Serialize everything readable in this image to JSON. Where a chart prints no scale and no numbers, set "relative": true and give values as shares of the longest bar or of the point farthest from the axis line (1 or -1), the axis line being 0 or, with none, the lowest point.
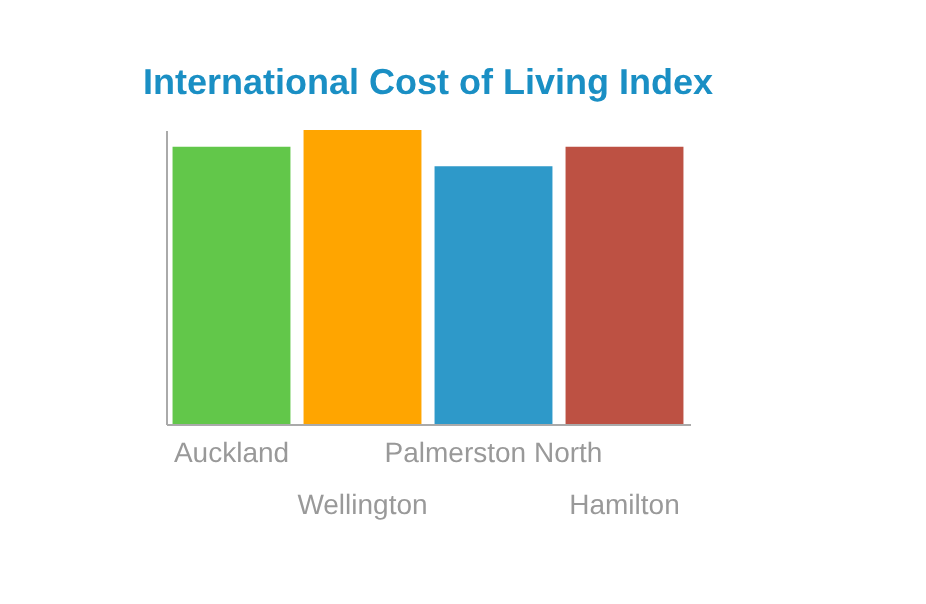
{
  "chart_data": {
    "type": "bar",
    "title": "International Cost of Living Index",
    "categories": [
      "Auckland",
      "Wellington",
      "Palmerston North",
      "Hamilton"
    ],
    "values": [
      0.943,
      1,
      0.877,
      0.943
    ],
    "colors": [
      "#62c74a",
      "#ffa500",
      "#2e99c9",
      "#bd5143"
    ],
    "relative": true,
    "grid": false
  }
}
